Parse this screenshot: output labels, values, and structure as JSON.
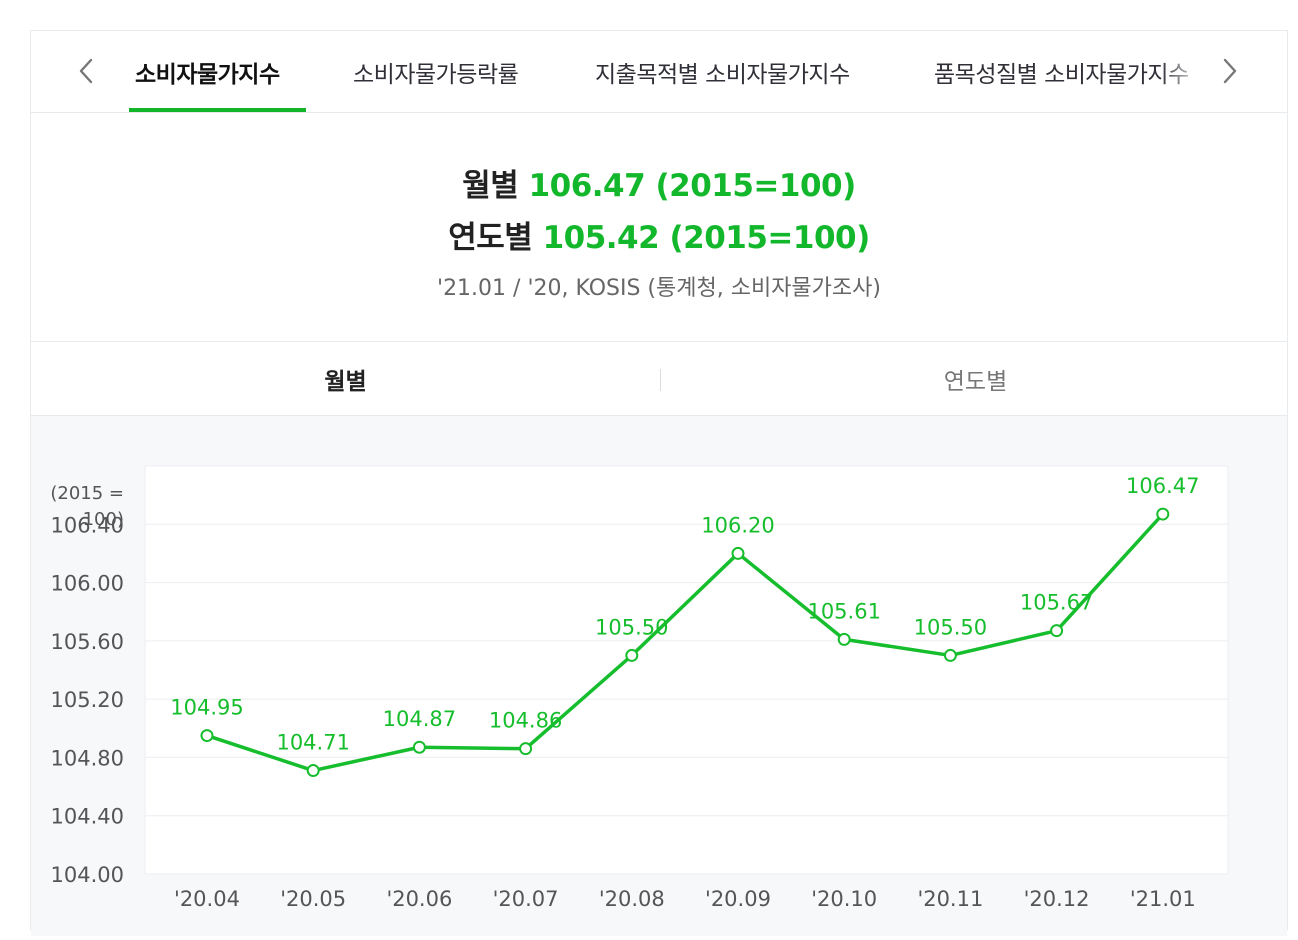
{
  "tabs": {
    "items": [
      {
        "label": "소비자물가지수",
        "active": true
      },
      {
        "label": "소비자물가등락률",
        "active": false
      },
      {
        "label": "지출목적별 소비자물가지수",
        "active": false
      },
      {
        "label": "품목성질별 소비자물가지수",
        "active": false
      }
    ],
    "prev_icon": "chevron-left-icon",
    "next_icon": "chevron-right-icon"
  },
  "summary": {
    "monthly_label": "월별",
    "monthly_value": "106.47 (2015=100)",
    "yearly_label": "연도별",
    "yearly_value": "105.42 (2015=100)",
    "source": "'21.01 / '20, KOSIS (통계청, 소비자물가조사)"
  },
  "period_toggle": {
    "monthly": "월별",
    "yearly": "연도별",
    "selected": "monthly"
  },
  "colors": {
    "accent": "#13b72b",
    "line": "#16bd2c"
  },
  "chart_data": {
    "type": "line",
    "unit_label": "(2015 = 100)",
    "x": [
      "'20.04",
      "'20.05",
      "'20.06",
      "'20.07",
      "'20.08",
      "'20.09",
      "'20.10",
      "'20.11",
      "'20.12",
      "'21.01"
    ],
    "series": [
      {
        "values": [
          104.95,
          104.71,
          104.87,
          104.86,
          105.5,
          106.2,
          105.61,
          105.5,
          105.67,
          106.47
        ]
      }
    ],
    "data_labels": [
      "104.95",
      "104.71",
      "104.87",
      "104.86",
      "105.50",
      "106.20",
      "105.61",
      "105.50",
      "105.67",
      "106.47"
    ],
    "y_ticks": [
      "104.00",
      "104.40",
      "104.80",
      "105.20",
      "105.60",
      "106.00",
      "106.40"
    ],
    "ylim": [
      104.0,
      106.8
    ],
    "grid": true,
    "legend": "none"
  }
}
